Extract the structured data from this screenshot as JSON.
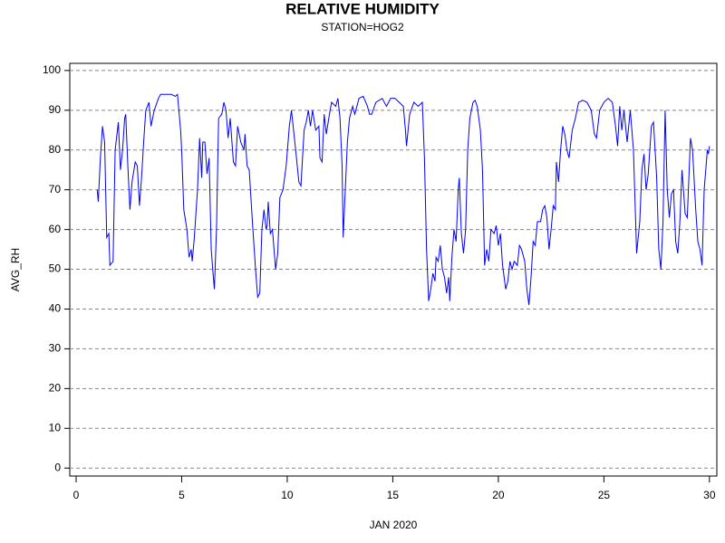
{
  "chart_data": {
    "type": "line",
    "title": "RELATIVE HUMIDITY",
    "subtitle": "STATION=HOG2",
    "xlabel": "JAN 2020",
    "ylabel": "AVG_RH",
    "xlim": [
      -0.3,
      30.35
    ],
    "ylim": [
      -2,
      101.8
    ],
    "xticks": [
      0,
      5,
      10,
      15,
      20,
      25,
      30
    ],
    "yticks": [
      0,
      10,
      20,
      30,
      40,
      50,
      60,
      70,
      80,
      90,
      100
    ],
    "grid": true,
    "series": [
      {
        "name": "AVG_RH",
        "color": "#0000ff",
        "x": [
          1.0,
          1.05,
          1.15,
          1.25,
          1.35,
          1.45,
          1.55,
          1.6,
          1.75,
          1.85,
          2.0,
          2.1,
          2.2,
          2.3,
          2.35,
          2.45,
          2.55,
          2.65,
          2.8,
          2.9,
          3.0,
          3.1,
          3.2,
          3.3,
          3.45,
          3.55,
          3.7,
          3.9,
          4.0,
          4.5,
          4.7,
          4.8,
          4.9,
          4.95,
          5.0,
          5.1,
          5.25,
          5.35,
          5.45,
          5.5,
          5.6,
          5.75,
          5.85,
          5.95,
          6.0,
          6.1,
          6.2,
          6.3,
          6.4,
          6.5,
          6.55,
          6.65,
          6.75,
          6.9,
          7.0,
          7.1,
          7.2,
          7.3,
          7.45,
          7.55,
          7.65,
          7.8,
          7.95,
          8.0,
          8.1,
          8.2,
          8.35,
          8.5,
          8.6,
          8.7,
          8.8,
          8.9,
          9.0,
          9.05,
          9.1,
          9.2,
          9.3,
          9.45,
          9.55,
          9.65,
          9.8,
          9.95,
          10.1,
          10.2,
          10.3,
          10.4,
          10.55,
          10.65,
          10.8,
          10.9,
          11.0,
          11.1,
          11.2,
          11.35,
          11.5,
          11.55,
          11.65,
          11.75,
          11.85,
          12.0,
          12.1,
          12.3,
          12.4,
          12.5,
          12.6,
          12.65,
          12.75,
          12.85,
          12.95,
          13.1,
          13.2,
          13.4,
          13.6,
          13.8,
          13.9,
          14.0,
          14.2,
          14.5,
          14.7,
          14.9,
          15.1,
          15.3,
          15.5,
          15.6,
          15.65,
          15.8,
          16.0,
          16.2,
          16.4,
          16.5,
          16.6,
          16.7,
          16.8,
          16.9,
          17.0,
          17.05,
          17.15,
          17.25,
          17.35,
          17.45,
          17.55,
          17.65,
          17.7,
          17.8,
          17.9,
          18.0,
          18.1,
          18.15,
          18.25,
          18.35,
          18.45,
          18.55,
          18.65,
          18.8,
          18.9,
          19.0,
          19.15,
          19.25,
          19.35,
          19.45,
          19.55,
          19.65,
          19.8,
          19.9,
          20.0,
          20.1,
          20.2,
          20.35,
          20.45,
          20.55,
          20.65,
          20.75,
          20.9,
          21.0,
          21.1,
          21.25,
          21.35,
          21.45,
          21.55,
          21.65,
          21.75,
          21.85,
          22.0,
          22.1,
          22.2,
          22.3,
          22.4,
          22.5,
          22.6,
          22.7,
          22.75,
          22.85,
          22.95,
          23.05,
          23.15,
          23.25,
          23.35,
          23.5,
          23.65,
          23.8,
          24.0,
          24.2,
          24.4,
          24.55,
          24.65,
          24.8,
          25.0,
          25.2,
          25.4,
          25.55,
          25.65,
          25.75,
          25.85,
          25.95,
          26.1,
          26.25,
          26.4,
          26.55,
          26.7,
          26.8,
          26.9,
          27.0,
          27.1,
          27.25,
          27.35,
          27.5,
          27.6,
          27.7,
          27.8,
          27.9,
          28.0,
          28.1,
          28.2,
          28.3,
          28.4,
          28.5,
          28.6,
          28.7,
          28.85,
          28.95,
          29.1,
          29.2,
          29.35,
          29.45,
          29.55,
          29.65,
          29.75,
          29.9,
          29.95,
          30.0
        ],
        "values": [
          70,
          67,
          78,
          86,
          82,
          58,
          59,
          51,
          52,
          80,
          87,
          75,
          80,
          88,
          89,
          76,
          65,
          72,
          77,
          76,
          66,
          73,
          82,
          90,
          92,
          86,
          90,
          93,
          94,
          94,
          93.5,
          94,
          88,
          85,
          80,
          65,
          60,
          53,
          55,
          52,
          58,
          70,
          83,
          73,
          82,
          82,
          74,
          78,
          55,
          48,
          45,
          60,
          88,
          89,
          92,
          90,
          83,
          88,
          77,
          76,
          86,
          82,
          80,
          84,
          76,
          75,
          62,
          50,
          43,
          44,
          60,
          65,
          60,
          61,
          67,
          59,
          60,
          50,
          54,
          68,
          70,
          76,
          86,
          90,
          85,
          80,
          72,
          71,
          85,
          87,
          90,
          86,
          90,
          85,
          86,
          78,
          77,
          89,
          84,
          89,
          92,
          91,
          93,
          88,
          76,
          58,
          70,
          82,
          88,
          91,
          89,
          93,
          93.5,
          91,
          89,
          89,
          92,
          93,
          91,
          93,
          93,
          92,
          91,
          85,
          81,
          89,
          92,
          91,
          92,
          78,
          55,
          42,
          45,
          49,
          47,
          53,
          52,
          56,
          50,
          48,
          44,
          48,
          42,
          53,
          60,
          57,
          70,
          73,
          59,
          54,
          60,
          80,
          88,
          92,
          92.5,
          91,
          85,
          75,
          51,
          55,
          52,
          60,
          59,
          61,
          56,
          59,
          51,
          45,
          47,
          52,
          50,
          52,
          51,
          56,
          55,
          52,
          45,
          41,
          48,
          57,
          56,
          62,
          62,
          65,
          66,
          63,
          55,
          60,
          66,
          65,
          77,
          72,
          80,
          86,
          84,
          80,
          78,
          85,
          88,
          92,
          92.5,
          92,
          90,
          84,
          83,
          90,
          92,
          93,
          92,
          86,
          81,
          91,
          85,
          90,
          82,
          90,
          80,
          54,
          62,
          75,
          79,
          70,
          74,
          86,
          87,
          73,
          55,
          50,
          62,
          90,
          70,
          63,
          69,
          70,
          57,
          54,
          62,
          75,
          64,
          63,
          83,
          80,
          65,
          57,
          55,
          51,
          70,
          80,
          79,
          81
        ]
      }
    ]
  }
}
